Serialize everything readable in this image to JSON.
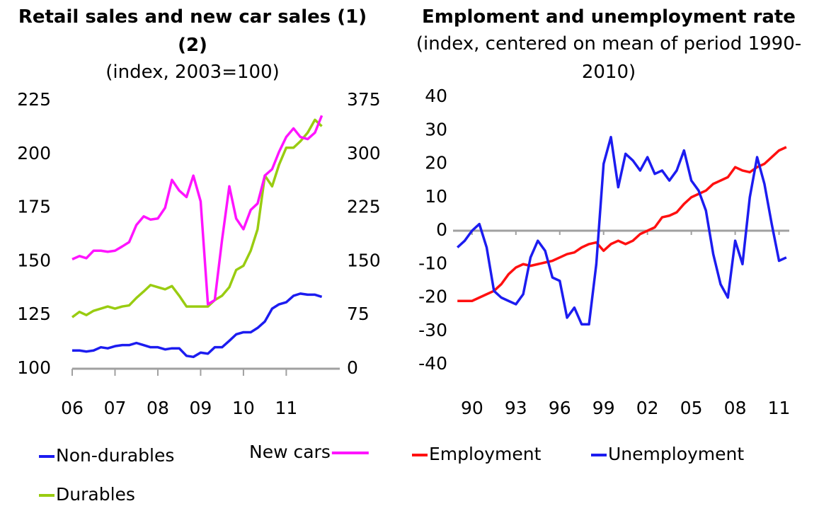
{
  "chart_data": [
    {
      "type": "line",
      "title": "Retail sales and new car sales (1)(2)",
      "subtitle": "(index, 2003=100)",
      "x": [
        2006,
        2006.17,
        2006.33,
        2006.5,
        2006.67,
        2006.83,
        2007,
        2007.17,
        2007.33,
        2007.5,
        2007.67,
        2007.83,
        2008,
        2008.17,
        2008.33,
        2008.5,
        2008.67,
        2008.83,
        2009,
        2009.17,
        2009.33,
        2009.5,
        2009.67,
        2009.83,
        2010,
        2010.17,
        2010.33,
        2010.5,
        2010.67,
        2010.83,
        2011,
        2011.17,
        2011.33,
        2011.5,
        2011.67,
        2011.83
      ],
      "xlim": [
        2006,
        2012.25
      ],
      "xticks": [
        {
          "value": 2006,
          "label": "06"
        },
        {
          "value": 2007,
          "label": "07"
        },
        {
          "value": 2008,
          "label": "08"
        },
        {
          "value": 2009,
          "label": "09"
        },
        {
          "value": 2010,
          "label": "10"
        },
        {
          "value": 2011,
          "label": "11"
        }
      ],
      "ylim": [
        100,
        225
      ],
      "yticks": [
        100,
        125,
        150,
        175,
        200,
        225
      ],
      "y2lim": [
        0,
        375
      ],
      "y2ticks": [
        0,
        75,
        150,
        225,
        300,
        375
      ],
      "series": [
        {
          "name": "Non-durables",
          "color": "#1c1cf0",
          "values": [
            108.5,
            108.5,
            108,
            108.5,
            110,
            109.5,
            110.5,
            111,
            111,
            112,
            111,
            110,
            110,
            109,
            109.5,
            109.5,
            106,
            105.5,
            107.5,
            107,
            110,
            110,
            113,
            116,
            117,
            117,
            119,
            122,
            128,
            130,
            131,
            134,
            135,
            134.5,
            134.5,
            133.5
          ]
        },
        {
          "name": "Durables",
          "color": "#99cc11",
          "values": [
            124,
            126.5,
            125,
            127,
            128,
            129,
            128,
            129,
            129.5,
            133,
            136,
            139,
            138,
            137,
            138.5,
            134,
            129,
            129,
            129,
            129,
            132,
            134,
            138,
            146,
            148,
            155,
            165,
            190,
            185,
            195,
            203,
            203,
            206,
            210,
            216,
            213
          ]
        },
        {
          "name": "New cars",
          "color": "#ff14ff",
          "axis": "y2",
          "values": [
            153,
            157.5,
            154.5,
            165,
            165,
            163.5,
            165,
            171,
            177,
            201,
            213,
            208.5,
            210,
            225,
            264,
            249,
            240,
            270,
            234,
            90,
            96,
            180,
            255,
            210,
            195,
            222,
            231,
            270,
            279,
            303,
            324,
            336,
            324,
            321,
            330,
            354
          ]
        }
      ]
    },
    {
      "type": "line",
      "title": "Emploment and unemployment rate",
      "subtitle": "(index, centered on mean of period 1990-2010)",
      "x": [
        1989,
        1989.5,
        1990,
        1990.5,
        1991,
        1991.5,
        1992,
        1992.5,
        1993,
        1993.5,
        1994,
        1994.5,
        1995,
        1995.5,
        1996,
        1996.5,
        1997,
        1997.5,
        1998,
        1998.5,
        1999,
        1999.5,
        2000,
        2000.5,
        2001,
        2001.5,
        2002,
        2002.5,
        2003,
        2003.5,
        2004,
        2004.5,
        2005,
        2005.5,
        2006,
        2006.5,
        2007,
        2007.5,
        2008,
        2008.5,
        2009,
        2009.5,
        2010,
        2010.5,
        2011,
        2011.5
      ],
      "xlim": [
        1988.7,
        2011.7
      ],
      "xticks": [
        {
          "value": 1990,
          "label": "90"
        },
        {
          "value": 1993,
          "label": "93"
        },
        {
          "value": 1996,
          "label": "96"
        },
        {
          "value": 1999,
          "label": "99"
        },
        {
          "value": 2002,
          "label": "02"
        },
        {
          "value": 2005,
          "label": "05"
        },
        {
          "value": 2008,
          "label": "08"
        },
        {
          "value": 2011,
          "label": "11"
        }
      ],
      "ylim": [
        -40,
        40
      ],
      "yticks": [
        -40,
        -30,
        -20,
        -10,
        0,
        10,
        20,
        30,
        40
      ],
      "series": [
        {
          "name": "Employment",
          "color": "#ff1010",
          "values": [
            -21,
            -21,
            -21,
            -20,
            -19,
            -18,
            -16,
            -13,
            -11,
            -10,
            -10.5,
            -10,
            -9.5,
            -9,
            -8,
            -7,
            -6.5,
            -5,
            -4,
            -3.5,
            -6,
            -4,
            -3,
            -4,
            -3,
            -1,
            0,
            1,
            4,
            4.5,
            5.5,
            8,
            10,
            11,
            12,
            14,
            15,
            16,
            19,
            18,
            17.5,
            19,
            20,
            22,
            24,
            25
          ]
        },
        {
          "name": "Unemployment",
          "color": "#1c1cf0",
          "values": [
            -5,
            -3,
            0,
            2,
            -5,
            -18,
            -20,
            -21,
            -22,
            -19,
            -8,
            -3,
            -6,
            -14,
            -15,
            -26,
            -23,
            -28,
            -28,
            -10,
            20,
            28,
            13,
            23,
            21,
            18,
            22,
            17,
            18,
            15,
            18,
            24,
            15,
            12,
            6,
            -7,
            -16,
            -20,
            -3,
            -10,
            10,
            22,
            14,
            2,
            -9,
            -8
          ]
        }
      ]
    }
  ]
}
